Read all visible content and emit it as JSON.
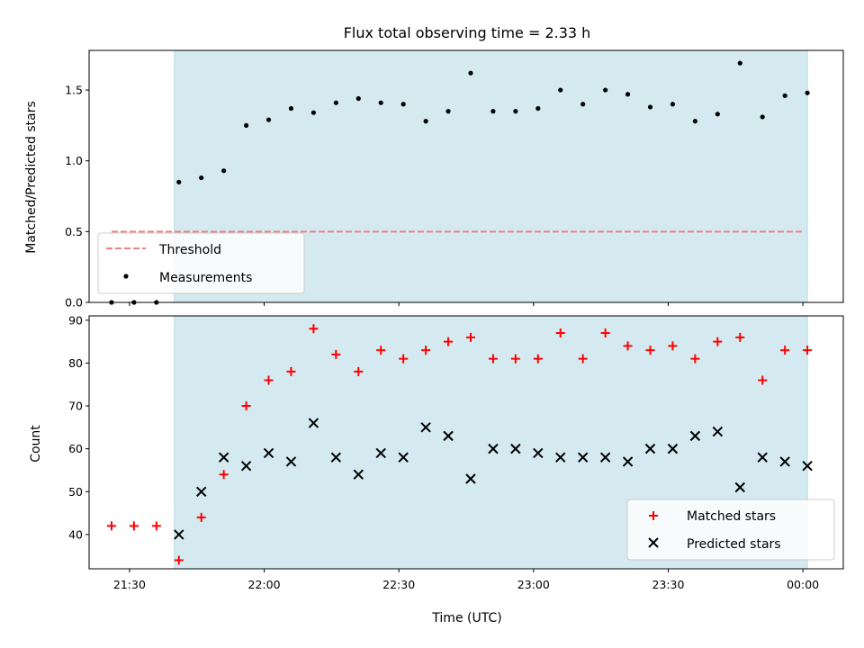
{
  "chart_data": [
    {
      "type": "scatter",
      "title": "Flux total observing time = 2.33 h",
      "xlabel": "",
      "ylabel": "Matched/Predicted stars",
      "ylim": [
        0,
        1.78
      ],
      "yticks": [
        "0.0",
        "0.5",
        "1.0",
        "1.5"
      ],
      "ytick_values": [
        0,
        0.5,
        1.0,
        1.5
      ],
      "threshold": {
        "name": "Threshold",
        "value": 0.5,
        "x_start": "21:26",
        "x_end": "00:00",
        "color": "#f08080"
      },
      "highlight": {
        "x_start": "21:40",
        "x_end": "00:01",
        "color": "#d4eaf0"
      },
      "series": [
        {
          "name": "Measurements",
          "x": [
            "21:26",
            "21:31",
            "21:36",
            "21:41",
            "21:46",
            "21:51",
            "21:56",
            "22:01",
            "22:06",
            "22:11",
            "22:16",
            "22:21",
            "22:26",
            "22:31",
            "22:36",
            "22:41",
            "22:46",
            "22:51",
            "22:56",
            "23:01",
            "23:06",
            "23:11",
            "23:16",
            "23:21",
            "23:26",
            "23:31",
            "23:36",
            "23:41",
            "23:46",
            "23:51",
            "23:56",
            "00:01"
          ],
          "values": [
            0.0,
            0.0,
            0.0,
            0.85,
            0.88,
            0.93,
            1.25,
            1.29,
            1.37,
            1.34,
            1.41,
            1.44,
            1.41,
            1.4,
            1.28,
            1.35,
            1.62,
            1.35,
            1.35,
            1.37,
            1.5,
            1.4,
            1.5,
            1.47,
            1.38,
            1.4,
            1.28,
            1.33,
            1.69,
            1.31,
            1.46,
            1.48
          ]
        }
      ],
      "legend": [
        "Threshold",
        "Measurements"
      ],
      "legend_position": "lower-left"
    },
    {
      "type": "scatter",
      "title": "",
      "xlabel": "Time (UTC)",
      "ylabel": "Count",
      "ylim": [
        32,
        91
      ],
      "yticks": [
        "40",
        "50",
        "60",
        "70",
        "80",
        "90"
      ],
      "ytick_values": [
        40,
        50,
        60,
        70,
        80,
        90
      ],
      "xticks": [
        "21:30",
        "22:00",
        "22:30",
        "23:00",
        "23:30",
        "00:00"
      ],
      "xlim": [
        "21:21",
        "00:09"
      ],
      "highlight": {
        "x_start": "21:40",
        "x_end": "00:01",
        "color": "#d4eaf0"
      },
      "series": [
        {
          "name": "Matched stars",
          "marker": "plus",
          "color": "#ff0000",
          "x": [
            "21:26",
            "21:31",
            "21:36",
            "21:41",
            "21:46",
            "21:51",
            "21:56",
            "22:01",
            "22:06",
            "22:11",
            "22:16",
            "22:21",
            "22:26",
            "22:31",
            "22:36",
            "22:41",
            "22:46",
            "22:51",
            "22:56",
            "23:01",
            "23:06",
            "23:11",
            "23:16",
            "23:21",
            "23:26",
            "23:31",
            "23:36",
            "23:41",
            "23:46",
            "23:51",
            "23:56",
            "00:01"
          ],
          "values": [
            42,
            42,
            42,
            34,
            44,
            54,
            70,
            76,
            78,
            88,
            82,
            78,
            83,
            81,
            83,
            85,
            86,
            81,
            81,
            81,
            87,
            81,
            87,
            84,
            83,
            84,
            81,
            85,
            86,
            76,
            83,
            83
          ]
        },
        {
          "name": "Predicted stars",
          "marker": "x",
          "color": "#000000",
          "x": [
            "21:41",
            "21:46",
            "21:51",
            "21:56",
            "22:01",
            "22:06",
            "22:11",
            "22:16",
            "22:21",
            "22:26",
            "22:31",
            "22:36",
            "22:41",
            "22:46",
            "22:51",
            "22:56",
            "23:01",
            "23:06",
            "23:11",
            "23:16",
            "23:21",
            "23:26",
            "23:31",
            "23:36",
            "23:41",
            "23:46",
            "23:51",
            "23:56",
            "00:01"
          ],
          "values": [
            40,
            50,
            58,
            56,
            59,
            57,
            66,
            58,
            54,
            59,
            58,
            65,
            63,
            53,
            60,
            60,
            59,
            58,
            58,
            58,
            57,
            60,
            60,
            63,
            64,
            51,
            58,
            57,
            56
          ]
        }
      ],
      "legend": [
        "Matched stars",
        "Predicted stars"
      ],
      "legend_position": "lower-right"
    }
  ]
}
